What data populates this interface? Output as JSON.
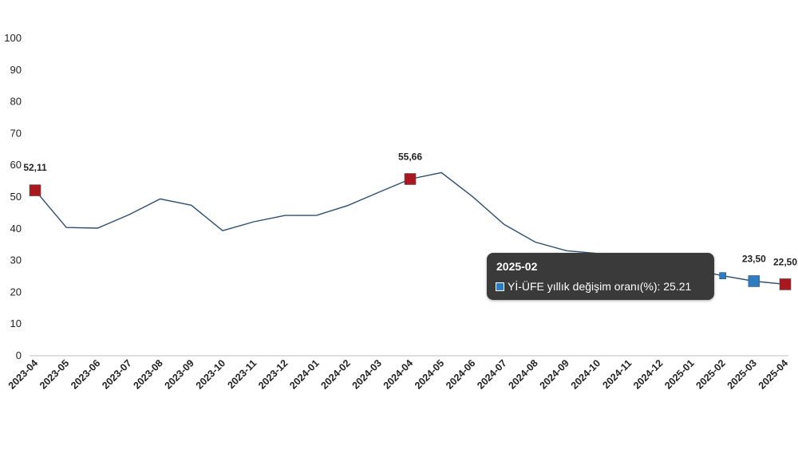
{
  "chart_data": {
    "type": "line",
    "categories": [
      "2023-04",
      "2023-05",
      "2023-06",
      "2023-07",
      "2023-08",
      "2023-09",
      "2023-10",
      "2023-11",
      "2023-12",
      "2024-01",
      "2024-02",
      "2024-03",
      "2024-04",
      "2024-05",
      "2024-06",
      "2024-07",
      "2024-08",
      "2024-09",
      "2024-10",
      "2024-11",
      "2024-12",
      "2025-01",
      "2025-02",
      "2025-03",
      "2025-04"
    ],
    "series": [
      {
        "name": "Yİ-ÜFE yıllık değişim oranı(%)",
        "values": [
          52.11,
          40.4,
          40.2,
          44.4,
          49.4,
          47.4,
          39.4,
          42.2,
          44.2,
          44.2,
          47.3,
          51.5,
          55.66,
          57.7,
          50.1,
          41.4,
          35.8,
          33.1,
          32.2,
          29.5,
          28.5,
          27.2,
          25.21,
          23.5,
          22.5
        ]
      }
    ],
    "ylim": [
      0,
      100
    ],
    "yticks": [
      "0",
      "10",
      "20",
      "30",
      "40",
      "50",
      "60",
      "70",
      "80",
      "90",
      "100"
    ],
    "grid": false,
    "line_color": "#2e4e6e",
    "highlighted_points": [
      {
        "index": 0,
        "label": "52,11",
        "color": "#a8181e"
      },
      {
        "index": 12,
        "label": "55,66",
        "color": "#a8181e"
      },
      {
        "index": 23,
        "label": "23,50",
        "color": "#2f7cc1"
      },
      {
        "index": 24,
        "label": "22,50",
        "color": "#a8181e"
      }
    ],
    "hover_point": {
      "index": 22,
      "color": "#2f7cc1"
    }
  },
  "tooltip": {
    "title": "2025-02",
    "series_label": "Yİ-ÜFE yıllık değişim oranı(%): 25.21",
    "swatch_color": "#2f7cc1"
  }
}
